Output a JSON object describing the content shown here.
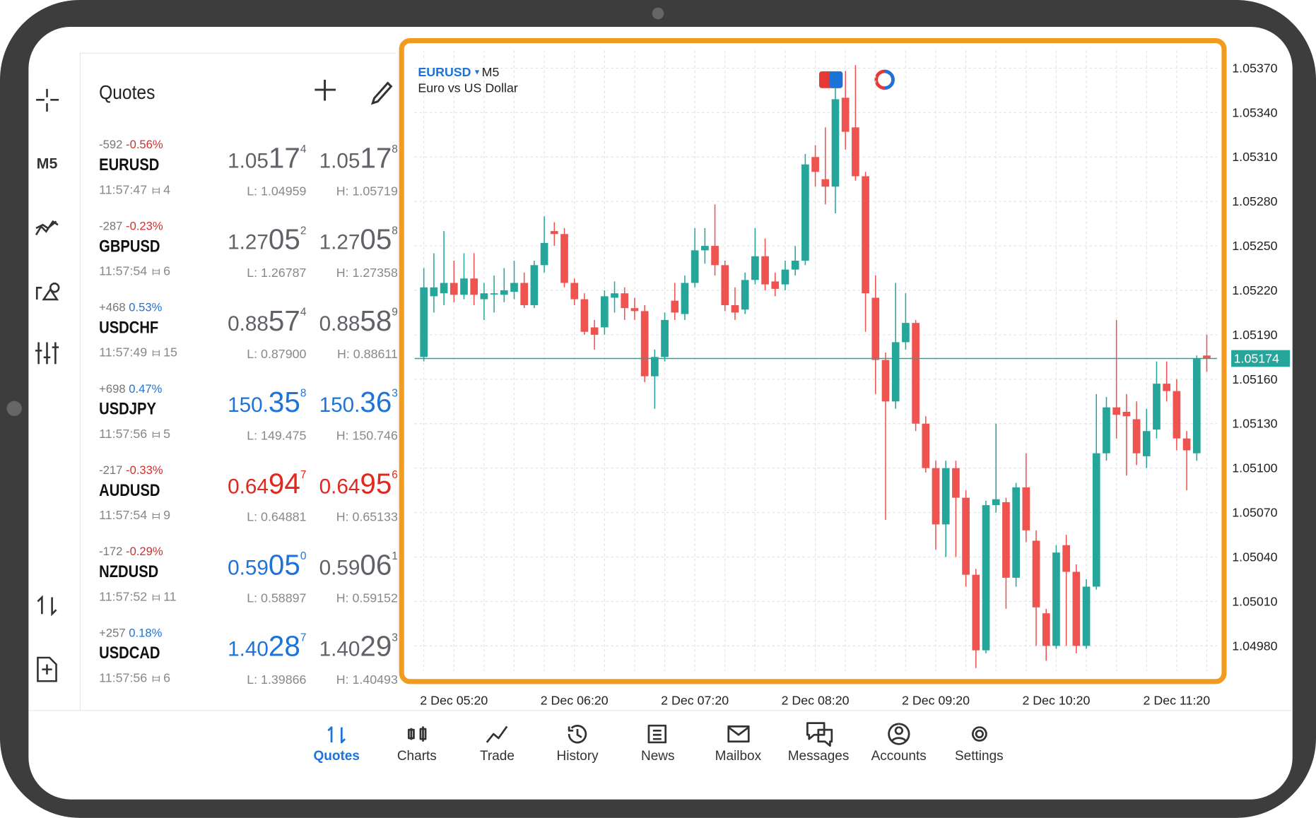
{
  "quotes_panel": {
    "title": "Quotes",
    "rows": [
      {
        "change_points": "-592",
        "change_pct": "-0.56%",
        "pct_color": "#d32f2f",
        "symbol": "EURUSD",
        "time": "11:57:47",
        "spread": "4",
        "bid": [
          "1.05",
          "17",
          "4"
        ],
        "ask": [
          "1.05",
          "17",
          "8"
        ],
        "bid_color": "#5f6368",
        "ask_color": "#5f6368",
        "low": "L: 1.04959",
        "high": "H: 1.05719"
      },
      {
        "change_points": "-287",
        "change_pct": "-0.23%",
        "pct_color": "#d32f2f",
        "symbol": "GBPUSD",
        "time": "11:57:54",
        "spread": "6",
        "bid": [
          "1.27",
          "05",
          "2"
        ],
        "ask": [
          "1.27",
          "05",
          "8"
        ],
        "bid_color": "#5f6368",
        "ask_color": "#5f6368",
        "low": "L: 1.26787",
        "high": "H: 1.27358"
      },
      {
        "change_points": "+468",
        "change_pct": "0.53%",
        "pct_color": "#1e73d8",
        "symbol": "USDCHF",
        "time": "11:57:49",
        "spread": "15",
        "bid": [
          "0.88",
          "57",
          "4"
        ],
        "ask": [
          "0.88",
          "58",
          "9"
        ],
        "bid_color": "#5f6368",
        "ask_color": "#5f6368",
        "low": "L: 0.87900",
        "high": "H: 0.88611"
      },
      {
        "change_points": "+698",
        "change_pct": "0.47%",
        "pct_color": "#1e73d8",
        "symbol": "USDJPY",
        "time": "11:57:56",
        "spread": "5",
        "bid": [
          "150.",
          "35",
          "8"
        ],
        "ask": [
          "150.",
          "36",
          "3"
        ],
        "bid_color": "#1e73d8",
        "ask_color": "#1e73d8",
        "low": "L: 149.475",
        "high": "H: 150.746"
      },
      {
        "change_points": "-217",
        "change_pct": "-0.33%",
        "pct_color": "#d32f2f",
        "symbol": "AUDUSD",
        "time": "11:57:54",
        "spread": "9",
        "bid": [
          "0.64",
          "94",
          "7"
        ],
        "ask": [
          "0.64",
          "95",
          "6"
        ],
        "bid_color": "#e0281e",
        "ask_color": "#e0281e",
        "low": "L: 0.64881",
        "high": "H: 0.65133"
      },
      {
        "change_points": "-172",
        "change_pct": "-0.29%",
        "pct_color": "#d32f2f",
        "symbol": "NZDUSD",
        "time": "11:57:52",
        "spread": "11",
        "bid": [
          "0.59",
          "05",
          "0"
        ],
        "ask": [
          "0.59",
          "06",
          "1"
        ],
        "bid_color": "#1e73d8",
        "ask_color": "#5f6368",
        "low": "L: 0.58897",
        "high": "H: 0.59152"
      },
      {
        "change_points": "+257",
        "change_pct": "0.18%",
        "pct_color": "#1e73d8",
        "symbol": "USDCAD",
        "time": "11:57:56",
        "spread": "6",
        "bid": [
          "1.40",
          "28",
          "7"
        ],
        "ask": [
          "1.40",
          "29",
          "3"
        ],
        "bid_color": "#1e73d8",
        "ask_color": "#5f6368",
        "low": "L: 1.39866",
        "high": "H: 1.40493"
      }
    ]
  },
  "toolbar": {
    "timeframe": "M5"
  },
  "nav": {
    "items": [
      "Quotes",
      "Charts",
      "Trade",
      "History",
      "News",
      "Mailbox",
      "Messages",
      "Accounts",
      "Settings"
    ],
    "active": 0
  },
  "chart_data": {
    "type": "candlestick",
    "symbol": "EURUSD",
    "timeframe": "M5",
    "subtitle": "Euro vs US Dollar",
    "up_color": "#26a69a",
    "down_color": "#ef5350",
    "grid": true,
    "categories": [
      null,
      null,
      null,
      "2 Dec 05:20",
      null,
      null,
      null,
      null,
      null,
      null,
      null,
      null,
      null,
      null,
      null,
      "2 Dec 06:20",
      null,
      null,
      null,
      null,
      null,
      null,
      null,
      null,
      null,
      null,
      null,
      "2 Dec 07:20",
      null,
      null,
      null,
      null,
      null,
      null,
      null,
      null,
      null,
      null,
      null,
      "2 Dec 08:20",
      null,
      null,
      null,
      null,
      null,
      null,
      null,
      null,
      null,
      null,
      null,
      "2 Dec 09:20",
      null,
      null,
      null,
      null,
      null,
      null,
      null,
      null,
      null,
      null,
      null,
      "2 Dec 10:20",
      null,
      null,
      null,
      null,
      null,
      null,
      null,
      null,
      null,
      null,
      null,
      "2 Dec 11:20",
      null,
      null,
      null
    ],
    "open": [
      1.05175,
      1.05216,
      1.05218,
      1.05225,
      1.05217,
      1.05228,
      1.05214,
      1.05218,
      1.05217,
      1.05219,
      1.05225,
      1.0521,
      1.05237,
      1.0526,
      1.05258,
      1.05225,
      1.05214,
      1.05195,
      1.05195,
      1.05215,
      1.05218,
      1.05208,
      1.05206,
      1.05162,
      1.05175,
      1.05213,
      1.05204,
      1.05225,
      1.05247,
      1.0525,
      1.05237,
      1.0521,
      1.05207,
      1.05227,
      1.05243,
      1.05226,
      1.05224,
      1.05234,
      1.0524,
      1.0531,
      1.05295,
      1.0529,
      1.0535,
      1.0533,
      1.05297,
      1.05215,
      1.05173,
      1.05145,
      1.05185,
      1.05198,
      1.0513,
      1.051,
      1.05062,
      1.051,
      1.0508,
      1.05028,
      1.04977,
      1.05075,
      1.05077,
      1.05026,
      1.05087,
      1.05051,
      1.05002,
      1.0498,
      1.05048,
      1.0503,
      1.0498,
      1.0502,
      1.0511,
      1.05141,
      1.05138,
      1.05133,
      1.05108,
      1.05126,
      1.05157,
      1.05152,
      1.0512,
      1.0511,
      1.05176
    ],
    "high": [
      1.05235,
      1.05245,
      1.0526,
      1.0524,
      1.05245,
      1.05245,
      1.05225,
      1.0523,
      1.05235,
      1.0524,
      1.05232,
      1.0524,
      1.0527,
      1.05266,
      1.05262,
      1.05228,
      1.05218,
      1.052,
      1.0522,
      1.05226,
      1.05222,
      1.05215,
      1.0521,
      1.0518,
      1.05205,
      1.05225,
      1.0523,
      1.05262,
      1.05262,
      1.05278,
      1.0524,
      1.05222,
      1.05232,
      1.05262,
      1.05255,
      1.05232,
      1.0524,
      1.0525,
      1.05312,
      1.05318,
      1.0533,
      1.05357,
      1.05368,
      1.05372,
      1.053,
      1.0523,
      1.05178,
      1.05225,
      1.05218,
      1.052,
      1.05135,
      1.05105,
      1.05105,
      1.05105,
      1.05085,
      1.05032,
      1.05078,
      1.0513,
      1.0508,
      1.0509,
      1.0511,
      1.05058,
      1.05005,
      1.05048,
      1.05055,
      1.05035,
      1.05025,
      1.0515,
      1.05148,
      1.052,
      1.0515,
      1.05145,
      1.0514,
      1.05172,
      1.05172,
      1.0516,
      1.05125,
      1.05176,
      1.0519
    ],
    "low": [
      1.05172,
      1.05205,
      1.0521,
      1.05212,
      1.05214,
      1.0521,
      1.052,
      1.05205,
      1.05212,
      1.05214,
      1.05208,
      1.05208,
      1.05232,
      1.0525,
      1.05222,
      1.0521,
      1.0519,
      1.0518,
      1.0519,
      1.05205,
      1.052,
      1.052,
      1.05158,
      1.0514,
      1.05172,
      1.052,
      1.052,
      1.05222,
      1.05238,
      1.0523,
      1.05206,
      1.052,
      1.05204,
      1.05224,
      1.0522,
      1.05216,
      1.0522,
      1.0523,
      1.05237,
      1.0529,
      1.05278,
      1.05272,
      1.05315,
      1.05294,
      1.05192,
      1.0515,
      1.05065,
      1.0514,
      1.0518,
      1.05125,
      1.05097,
      1.05045,
      1.0504,
      1.0504,
      1.0502,
      1.04965,
      1.04975,
      1.0507,
      1.05005,
      1.0502,
      1.0505,
      1.0498,
      1.0497,
      1.04978,
      1.0498,
      1.04975,
      1.04978,
      1.05018,
      1.05105,
      1.0512,
      1.05095,
      1.05102,
      1.051,
      1.0512,
      1.05145,
      1.05112,
      1.05085,
      1.05105,
      1.05165
    ],
    "close": [
      1.05222,
      1.05222,
      1.05225,
      1.05217,
      1.05228,
      1.05217,
      1.05218,
      1.05218,
      1.0522,
      1.05225,
      1.0521,
      1.05237,
      1.05252,
      1.05258,
      1.05225,
      1.05214,
      1.05192,
      1.0519,
      1.05216,
      1.05218,
      1.05208,
      1.05206,
      1.05162,
      1.05175,
      1.052,
      1.05205,
      1.05225,
      1.05247,
      1.0525,
      1.05237,
      1.0521,
      1.05205,
      1.05227,
      1.05243,
      1.05224,
      1.05221,
      1.05234,
      1.0524,
      1.05305,
      1.053,
      1.0529,
      1.05349,
      1.05327,
      1.05297,
      1.05218,
      1.05173,
      1.05145,
      1.05185,
      1.05198,
      1.0513,
      1.051,
      1.05062,
      1.051,
      1.0508,
      1.05028,
      1.04977,
      1.05075,
      1.05079,
      1.05026,
      1.05087,
      1.05058,
      1.05006,
      1.0498,
      1.05043,
      1.0503,
      1.0498,
      1.0502,
      1.0511,
      1.05141,
      1.05136,
      1.05135,
      1.0511,
      1.05125,
      1.05157,
      1.05152,
      1.0512,
      1.05112,
      1.05174,
      1.05174
    ],
    "last_price": 1.05174,
    "last_color": "#26a69a",
    "ylim": [
      1.04963,
      1.05382
    ],
    "yticks": [
      {
        "value": 1.0537,
        "label": "1.05370"
      },
      {
        "value": 1.0534,
        "label": "1.05340"
      },
      {
        "value": 1.0531,
        "label": "1.05310"
      },
      {
        "value": 1.0528,
        "label": "1.05280"
      },
      {
        "value": 1.0525,
        "label": "1.05250"
      },
      {
        "value": 1.0522,
        "label": "1.05220"
      },
      {
        "value": 1.0519,
        "label": "1.05190"
      },
      {
        "value": 1.0516,
        "label": "1.05160"
      },
      {
        "value": 1.0513,
        "label": "1.05130"
      },
      {
        "value": 1.051,
        "label": "1.05100"
      },
      {
        "value": 1.0507,
        "label": "1.05070"
      },
      {
        "value": 1.0504,
        "label": "1.05040"
      },
      {
        "value": 1.0501,
        "label": "1.05010"
      },
      {
        "value": 1.0498,
        "label": "1.04980"
      }
    ]
  }
}
